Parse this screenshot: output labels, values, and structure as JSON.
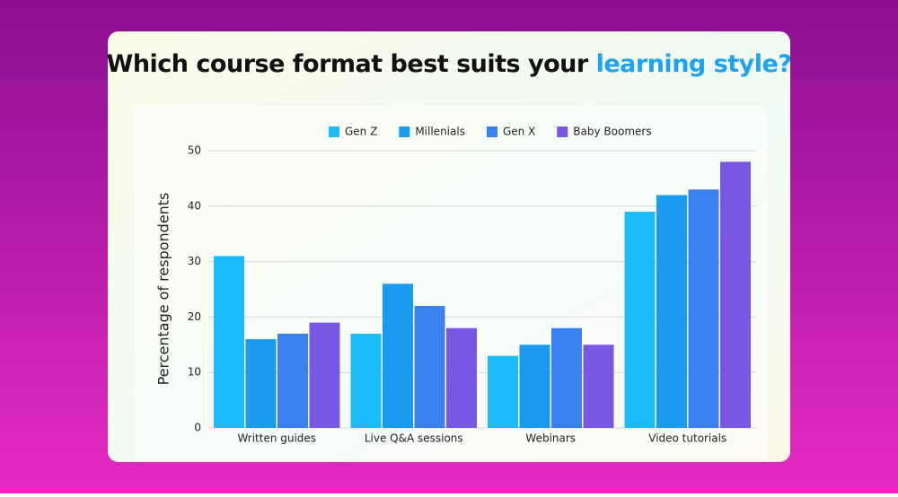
{
  "chart_data": {
    "type": "bar",
    "title": "Which course format best suits your",
    "title_highlight": "learning style?",
    "y_label": "Percentage of respondents",
    "categories": [
      "Written guides",
      "Live Q&A sessions",
      "Webinars",
      "Video tutorials"
    ],
    "series": [
      {
        "name": "Gen Z",
        "color": "#1bbcf7",
        "values": [
          31,
          17,
          13,
          39
        ]
      },
      {
        "name": "Millenials",
        "color": "#1a9bef",
        "values": [
          16,
          26,
          15,
          42
        ]
      },
      {
        "name": "Gen X",
        "color": "#3a80ee",
        "values": [
          17,
          22,
          18,
          43
        ]
      },
      {
        "name": "Baby Boomers",
        "color": "#7a57e2",
        "values": [
          19,
          18,
          15,
          48
        ]
      }
    ],
    "ylim": [
      0,
      50
    ],
    "yticks": [
      0,
      10,
      20,
      30,
      40,
      50
    ],
    "grid": true
  }
}
